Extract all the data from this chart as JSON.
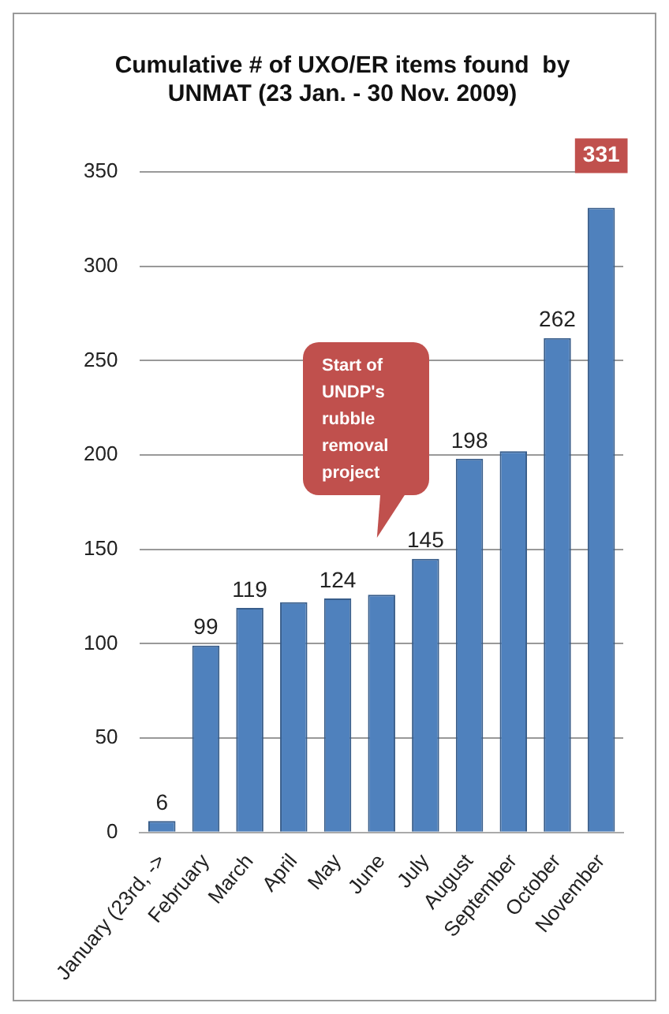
{
  "chart_data": {
    "type": "bar",
    "title": [
      "Cumulative # of UXO/ER items found  by",
      "UNMAT (23 Jan. - 30 Nov. 2009)"
    ],
    "categories": [
      "January (23rd, ->",
      "February",
      "March",
      "April",
      "May",
      "June",
      "July",
      "August",
      "September",
      "October",
      "November"
    ],
    "values": [
      6,
      99,
      119,
      122,
      124,
      126,
      145,
      198,
      202,
      262,
      331
    ],
    "value_labels": [
      "6",
      "99",
      "119",
      null,
      "124",
      null,
      "145",
      "198",
      null,
      "262",
      "331"
    ],
    "color": "#4f81bd",
    "ylim": [
      0,
      350
    ],
    "yticks": [
      0,
      50,
      100,
      150,
      200,
      250,
      300,
      350
    ],
    "grid": "y",
    "annotations": [
      "Start of UNDP's rubble removal project"
    ],
    "legend": false
  }
}
